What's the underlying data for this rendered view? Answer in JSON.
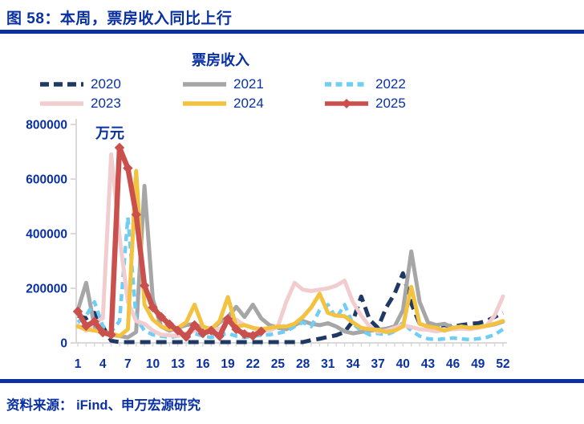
{
  "title": "图 58：本周，票房收入同比上行",
  "source_line": "资料来源：  iFind、申万宏源研究",
  "accent_color": "#0A31A2",
  "axis_color": "#D9D9D9",
  "chart_data": {
    "type": "line",
    "title": "票房收入",
    "unit_label": "万元",
    "x_description": "week of year",
    "x_range": [
      1,
      52
    ],
    "x_ticks": [
      1,
      4,
      7,
      10,
      13,
      16,
      19,
      22,
      25,
      28,
      31,
      34,
      37,
      40,
      43,
      46,
      49,
      52
    ],
    "ylim": [
      0,
      800000
    ],
    "y_ticks": [
      0,
      200000,
      400000,
      600000,
      800000
    ],
    "grid": false,
    "legend_position": "top",
    "series": [
      {
        "name": "2020",
        "color": "#1F3864",
        "style": "dashed",
        "width": 5,
        "marker": "none",
        "values": [
          100000,
          90000,
          110000,
          60000,
          8000,
          3000,
          3000,
          3000,
          3000,
          3000,
          3000,
          3000,
          3000,
          3000,
          3000,
          3000,
          3000,
          3000,
          3000,
          3000,
          3000,
          3000,
          3000,
          3000,
          3000,
          3000,
          3000,
          3000,
          10000,
          15000,
          22000,
          28000,
          40000,
          80000,
          170000,
          85000,
          55000,
          130000,
          180000,
          255000,
          145000,
          70000,
          60000,
          62000,
          65000,
          60000,
          65000,
          70000,
          72000,
          80000,
          95000,
          110000
        ]
      },
      {
        "name": "2021",
        "color": "#A6A6A6",
        "style": "solid",
        "width": 5,
        "marker": "none",
        "values": [
          120000,
          220000,
          60000,
          40000,
          30000,
          25000,
          20000,
          40000,
          575000,
          160000,
          60000,
          45000,
          55000,
          65000,
          70000,
          50000,
          45000,
          75000,
          95000,
          132000,
          95000,
          140000,
          90000,
          65000,
          55000,
          50000,
          65000,
          80000,
          70000,
          65000,
          72000,
          60000,
          42000,
          35000,
          40000,
          45000,
          48000,
          52000,
          60000,
          120000,
          335000,
          150000,
          75000,
          65000,
          70000,
          55000,
          60000,
          55000,
          58000,
          62000,
          68000,
          78000
        ]
      },
      {
        "name": "2022",
        "color": "#70CDF4",
        "style": "dashed",
        "width": 4.5,
        "marker": "none",
        "values": [
          75000,
          100000,
          150000,
          60000,
          40000,
          80000,
          460000,
          90000,
          45000,
          30000,
          25000,
          20000,
          25000,
          30000,
          35000,
          25000,
          20000,
          30000,
          35000,
          25000,
          20000,
          25000,
          28000,
          30000,
          35000,
          42000,
          60000,
          75000,
          60000,
          120000,
          140000,
          90000,
          140000,
          70000,
          45000,
          30000,
          35000,
          30000,
          42000,
          75000,
          45000,
          25000,
          15000,
          12000,
          15000,
          18000,
          15000,
          12000,
          15000,
          20000,
          30000,
          50000
        ]
      },
      {
        "name": "2023",
        "color": "#F2CDD0",
        "style": "solid",
        "width": 5,
        "marker": "none",
        "values": [
          65000,
          45000,
          75000,
          90000,
          690000,
          390000,
          150000,
          80000,
          70000,
          45000,
          30000,
          28000,
          25000,
          35000,
          45000,
          50000,
          55000,
          50000,
          75000,
          85000,
          65000,
          55000,
          45000,
          45000,
          60000,
          150000,
          220000,
          195000,
          190000,
          195000,
          200000,
          210000,
          228000,
          150000,
          100000,
          60000,
          40000,
          45000,
          55000,
          65000,
          58000,
          50000,
          48000,
          42000,
          48000,
          50000,
          52000,
          50000,
          55000,
          62000,
          100000,
          170000
        ]
      },
      {
        "name": "2024",
        "color": "#F2C240",
        "style": "solid",
        "width": 5,
        "marker": "none",
        "values": [
          60000,
          50000,
          45000,
          40000,
          35000,
          25000,
          50000,
          630000,
          140000,
          85000,
          60000,
          50000,
          55000,
          75000,
          140000,
          60000,
          50000,
          80000,
          168000,
          60000,
          65000,
          55000,
          50000,
          55000,
          60000,
          60000,
          70000,
          95000,
          130000,
          180000,
          110000,
          100000,
          98000,
          75000,
          55000,
          50000,
          48000,
          40000,
          45000,
          60000,
          205000,
          70000,
          60000,
          55000,
          45000,
          55000,
          60000,
          55000,
          58000,
          62000,
          70000,
          80000
        ]
      },
      {
        "name": "2025",
        "color": "#C9504D",
        "style": "solid",
        "width": 6.5,
        "marker": "diamond",
        "values": [
          115000,
          62000,
          78000,
          38000,
          30000,
          715000,
          640000,
          470000,
          210000,
          130000,
          95000,
          68000,
          45000,
          22000,
          65000,
          35000,
          45000,
          25000,
          88000,
          50000,
          32000,
          26000,
          42000
        ]
      }
    ]
  }
}
